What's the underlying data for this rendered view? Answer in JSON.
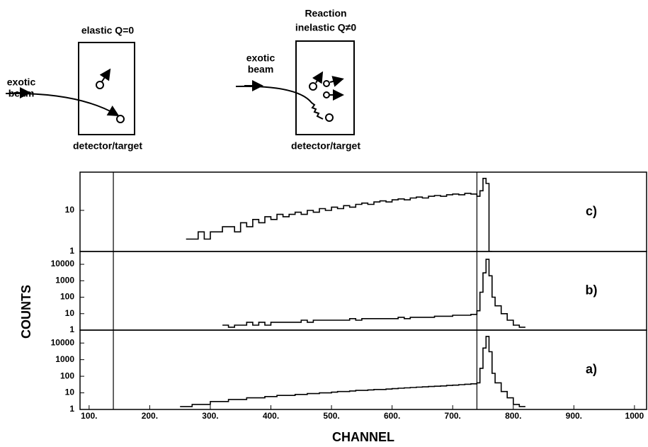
{
  "diagrams": [
    {
      "title": [
        "elastic Q=0"
      ],
      "beam_label": [
        "exotic",
        "beam"
      ],
      "box_label": "detector/target"
    },
    {
      "title": [
        "Reaction",
        "inelastic Q≠0"
      ],
      "beam_label": [
        "exotic",
        "beam"
      ],
      "box_label": "detector/target"
    }
  ],
  "chart_data": [
    {
      "type": "line",
      "label": "c)",
      "log_scale": true,
      "color": "#000000",
      "xlim": [
        85,
        1020
      ],
      "ylim": [
        1,
        85
      ],
      "yticks": [
        1,
        10
      ],
      "vlines": [
        140,
        740
      ],
      "x": [
        260,
        270,
        280,
        290,
        300,
        310,
        320,
        330,
        340,
        350,
        360,
        370,
        380,
        390,
        400,
        410,
        420,
        430,
        440,
        450,
        460,
        470,
        480,
        490,
        500,
        510,
        520,
        530,
        540,
        550,
        560,
        570,
        580,
        590,
        600,
        610,
        620,
        630,
        640,
        650,
        660,
        670,
        680,
        690,
        700,
        710,
        720,
        730,
        740,
        745,
        750,
        755,
        760
      ],
      "values": [
        2,
        2,
        3,
        2,
        3,
        3,
        4,
        4,
        3,
        5,
        4,
        6,
        5,
        7,
        6,
        8,
        7,
        8,
        9,
        8,
        10,
        9,
        11,
        10,
        12,
        11,
        13,
        12,
        14,
        15,
        14,
        16,
        17,
        16,
        18,
        19,
        18,
        20,
        21,
        20,
        22,
        23,
        22,
        24,
        25,
        24,
        26,
        25,
        22,
        30,
        60,
        45,
        1
      ]
    },
    {
      "type": "line",
      "label": "b)",
      "log_scale": true,
      "color": "#000000",
      "ylabel": "COUNTS",
      "xlim": [
        85,
        1020
      ],
      "ylim": [
        1,
        60000
      ],
      "yticks": [
        1,
        10,
        100,
        1000,
        10000
      ],
      "vlines": [
        140,
        740
      ],
      "x": [
        320,
        330,
        340,
        350,
        360,
        370,
        380,
        390,
        400,
        410,
        420,
        430,
        440,
        450,
        460,
        470,
        480,
        490,
        500,
        510,
        520,
        530,
        540,
        550,
        560,
        570,
        580,
        590,
        600,
        610,
        620,
        630,
        640,
        650,
        660,
        670,
        680,
        690,
        700,
        710,
        720,
        730,
        740,
        745,
        750,
        755,
        760,
        765,
        770,
        780,
        790,
        800,
        810
      ],
      "values": [
        2,
        1.5,
        2,
        2,
        3,
        2,
        3,
        2,
        3,
        3,
        3,
        3,
        3,
        4,
        3,
        4,
        4,
        4,
        4,
        4,
        4,
        5,
        4,
        5,
        5,
        5,
        5,
        5,
        5,
        6,
        5,
        6,
        6,
        6,
        6,
        7,
        7,
        7,
        8,
        8,
        8,
        9,
        15,
        200,
        3000,
        20000,
        2000,
        100,
        30,
        10,
        4,
        2,
        1.5
      ]
    },
    {
      "type": "line",
      "label": "a)",
      "log_scale": true,
      "color": "#000000",
      "xlabel": "CHANNEL",
      "xlim": [
        85,
        1020
      ],
      "ylim": [
        1,
        60000
      ],
      "yticks": [
        1,
        10,
        100,
        1000,
        10000
      ],
      "vlines": [
        140,
        740
      ],
      "xticks": [
        {
          "value": 100,
          "label": "100."
        },
        {
          "value": 200,
          "label": "200."
        },
        {
          "value": 300,
          "label": "300."
        },
        {
          "value": 400,
          "label": "400."
        },
        {
          "value": 500,
          "label": "500."
        },
        {
          "value": 600,
          "label": "600."
        },
        {
          "value": 700,
          "label": "700."
        },
        {
          "value": 800,
          "label": "800."
        },
        {
          "value": 900,
          "label": "900."
        },
        1000
      ],
      "x": [
        250,
        260,
        270,
        280,
        290,
        300,
        310,
        320,
        330,
        340,
        350,
        360,
        370,
        380,
        390,
        400,
        410,
        420,
        430,
        440,
        450,
        460,
        470,
        480,
        490,
        500,
        510,
        520,
        530,
        540,
        550,
        560,
        570,
        580,
        590,
        600,
        610,
        620,
        630,
        640,
        650,
        660,
        670,
        680,
        690,
        700,
        710,
        720,
        730,
        740,
        745,
        750,
        755,
        760,
        765,
        770,
        780,
        790,
        800,
        810
      ],
      "values": [
        1.5,
        1.5,
        2,
        2,
        2,
        3,
        3,
        3,
        4,
        4,
        4,
        5,
        5,
        5,
        6,
        6,
        7,
        7,
        7,
        8,
        8,
        9,
        9,
        10,
        10,
        11,
        12,
        12,
        13,
        14,
        14,
        15,
        16,
        16,
        17,
        18,
        19,
        20,
        21,
        22,
        23,
        24,
        25,
        26,
        28,
        29,
        31,
        33,
        35,
        40,
        300,
        5000,
        25000,
        3000,
        150,
        40,
        12,
        5,
        2,
        1.5
      ]
    }
  ]
}
